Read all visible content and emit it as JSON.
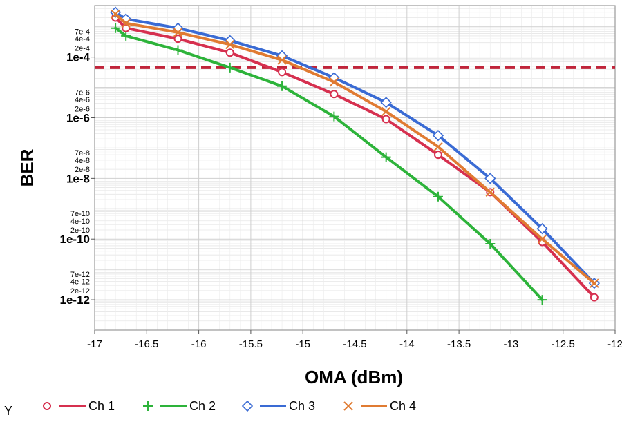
{
  "chart_data": {
    "type": "line",
    "xlabel": "OMA (dBm)",
    "ylabel": "BER",
    "xlim": [
      -17,
      -12
    ],
    "ylim": [
      1e-13,
      0.005
    ],
    "y_scale": "log",
    "grid": true,
    "x_ticks": [
      "-17",
      "-16.5",
      "-16",
      "-15.5",
      "-15",
      "-14.5",
      "-14",
      "-13.5",
      "-13",
      "-12.5",
      "-12"
    ],
    "y_major_ticks": [
      {
        "value": 0.0001,
        "label": "1e-4"
      },
      {
        "value": 1e-06,
        "label": "1e-6"
      },
      {
        "value": 1e-08,
        "label": "1e-8"
      },
      {
        "value": 1e-10,
        "label": "1e-10"
      },
      {
        "value": 1e-12,
        "label": "1e-12"
      }
    ],
    "y_minor_ticks": [
      {
        "value": 0.0007,
        "label": "7e-4"
      },
      {
        "value": 0.0004,
        "label": "4e-4"
      },
      {
        "value": 0.0002,
        "label": "2e-4"
      },
      {
        "value": 7e-06,
        "label": "7e-6"
      },
      {
        "value": 4e-06,
        "label": "4e-6"
      },
      {
        "value": 2e-06,
        "label": "2e-6"
      },
      {
        "value": 7e-08,
        "label": "7e-8"
      },
      {
        "value": 4e-08,
        "label": "4e-8"
      },
      {
        "value": 2e-08,
        "label": "2e-8"
      },
      {
        "value": 7e-10,
        "label": "7e-10"
      },
      {
        "value": 4e-10,
        "label": "4e-10"
      },
      {
        "value": 2e-10,
        "label": "2e-10"
      },
      {
        "value": 7e-12,
        "label": "7e-12"
      },
      {
        "value": 4e-12,
        "label": "4e-12"
      },
      {
        "value": 2e-12,
        "label": "2e-12"
      }
    ],
    "threshold": {
      "value": 4.5e-05,
      "color": "#c0243a",
      "style": "dashed"
    },
    "legend_title": "Y",
    "legend_position": "bottom",
    "series": [
      {
        "name": "Ch 1",
        "color": "#d6304f",
        "marker": "circle",
        "x": [
          -16.8,
          -16.7,
          -16.2,
          -15.7,
          -15.2,
          -14.7,
          -14.2,
          -13.7,
          -13.2,
          -12.7,
          -12.2
        ],
        "y": [
          0.002,
          0.0009,
          0.0004,
          0.00014,
          3.2e-05,
          6e-06,
          9e-07,
          6e-08,
          3.5e-09,
          8e-11,
          1.2e-12
        ]
      },
      {
        "name": "Ch 2",
        "color": "#2db33a",
        "marker": "plus",
        "x": [
          -16.8,
          -16.7,
          -16.2,
          -15.7,
          -15.2,
          -14.7,
          -14.2,
          -13.7,
          -13.2,
          -12.7
        ],
        "y": [
          0.0009,
          0.0005,
          0.00017,
          4.5e-05,
          1.1e-05,
          1.1e-06,
          5e-08,
          2.5e-09,
          7e-11,
          1e-12
        ]
      },
      {
        "name": "Ch 3",
        "color": "#3a6bd4",
        "marker": "diamond",
        "x": [
          -16.8,
          -16.7,
          -16.2,
          -15.7,
          -15.2,
          -14.7,
          -14.2,
          -13.7,
          -13.2,
          -12.7,
          -12.2
        ],
        "y": [
          0.003,
          0.0018,
          0.0009,
          0.00035,
          0.00011,
          2.1e-05,
          3.2e-06,
          2.6e-07,
          1e-08,
          2.2e-10,
          3.5e-12
        ]
      },
      {
        "name": "Ch 4",
        "color": "#e07b32",
        "marker": "x",
        "x": [
          -16.8,
          -16.7,
          -16.2,
          -15.7,
          -15.2,
          -14.7,
          -14.2,
          -13.7,
          -13.2,
          -12.7,
          -12.2
        ],
        "y": [
          0.0026,
          0.0013,
          0.00065,
          0.00026,
          8e-05,
          1.5e-05,
          1.6e-06,
          1.1e-07,
          3.5e-09,
          1e-10,
          3.5e-12
        ]
      }
    ]
  }
}
